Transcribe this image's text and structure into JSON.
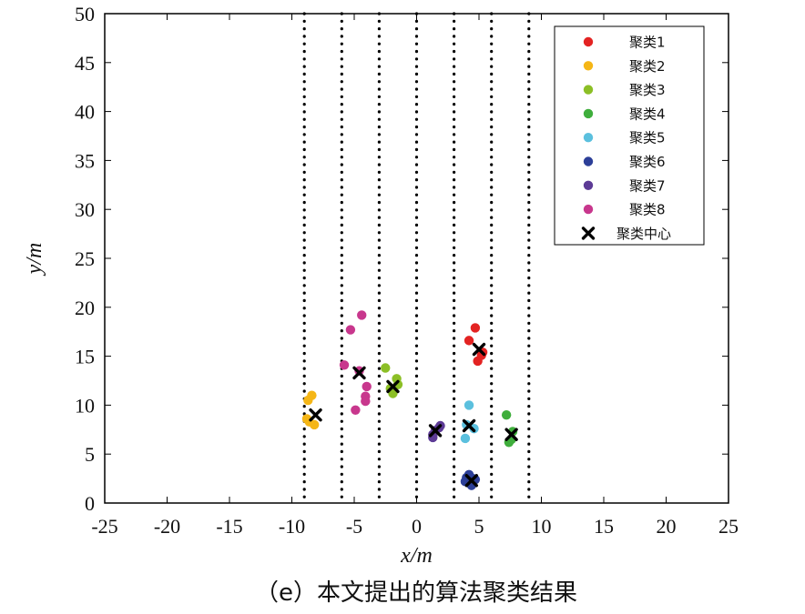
{
  "chart_data": {
    "type": "scatter",
    "caption": "（e）本文提出的算法聚类结果",
    "xlabel": "x/m",
    "ylabel": "y/m",
    "xlim": [
      -25,
      25
    ],
    "ylim": [
      0,
      50
    ],
    "xticks": [
      -25,
      -20,
      -15,
      -10,
      -5,
      0,
      5,
      10,
      15,
      20,
      25
    ],
    "yticks": [
      0,
      5,
      10,
      15,
      20,
      25,
      30,
      35,
      40,
      45,
      50
    ],
    "grid": false,
    "legend_position": "top-right",
    "lane_lines_x": [
      -9,
      -6,
      -3,
      0,
      3,
      6,
      9
    ],
    "series": [
      {
        "name": "聚类1",
        "color": "#e32322",
        "points": [
          [
            4.7,
            17.9
          ],
          [
            4.2,
            16.6
          ],
          [
            5.3,
            15.4
          ],
          [
            5.2,
            15.1
          ],
          [
            4.9,
            14.5
          ]
        ]
      },
      {
        "name": "聚类2",
        "color": "#f5b616",
        "points": [
          [
            -8.4,
            11.0
          ],
          [
            -8.7,
            10.5
          ],
          [
            -8.6,
            8.3
          ],
          [
            -8.2,
            8.0
          ],
          [
            -8.8,
            8.6
          ]
        ]
      },
      {
        "name": "聚类3",
        "color": "#8cbf26",
        "points": [
          [
            -2.5,
            13.8
          ],
          [
            -1.6,
            12.7
          ],
          [
            -1.5,
            12.1
          ],
          [
            -1.9,
            11.2
          ],
          [
            -2.1,
            11.7
          ]
        ]
      },
      {
        "name": "聚类4",
        "color": "#3fae3c",
        "points": [
          [
            7.2,
            9.0
          ],
          [
            7.7,
            7.3
          ],
          [
            7.4,
            6.2
          ],
          [
            7.6,
            6.5
          ]
        ]
      },
      {
        "name": "聚类5",
        "color": "#5bc0de",
        "points": [
          [
            4.2,
            10.0
          ],
          [
            4.6,
            7.6
          ],
          [
            3.9,
            6.6
          ],
          [
            4.0,
            8.0
          ]
        ]
      },
      {
        "name": "聚类6",
        "color": "#2c3f98",
        "points": [
          [
            4.2,
            2.9
          ],
          [
            4.5,
            2.5
          ],
          [
            3.9,
            2.2
          ],
          [
            4.4,
            1.8
          ],
          [
            4.7,
            2.4
          ],
          [
            4.0,
            2.6
          ]
        ]
      },
      {
        "name": "聚类7",
        "color": "#5d3b96",
        "points": [
          [
            1.8,
            7.7
          ],
          [
            1.3,
            7.0
          ],
          [
            1.3,
            6.7
          ],
          [
            1.9,
            7.9
          ],
          [
            1.5,
            7.4
          ]
        ]
      },
      {
        "name": "聚类8",
        "color": "#c8378d",
        "points": [
          [
            -4.4,
            19.2
          ],
          [
            -5.3,
            17.7
          ],
          [
            -5.8,
            14.1
          ],
          [
            -4.6,
            13.5
          ],
          [
            -4.0,
            11.9
          ],
          [
            -4.1,
            10.9
          ],
          [
            -4.1,
            10.4
          ],
          [
            -4.9,
            9.5
          ]
        ]
      }
    ],
    "centers": {
      "name": "聚类中心",
      "points": [
        [
          5.0,
          15.7
        ],
        [
          -8.1,
          9.0
        ],
        [
          -1.9,
          11.9
        ],
        [
          7.6,
          7.0
        ],
        [
          4.2,
          7.9
        ],
        [
          4.4,
          2.3
        ],
        [
          1.5,
          7.4
        ],
        [
          -4.6,
          13.3
        ]
      ]
    }
  }
}
